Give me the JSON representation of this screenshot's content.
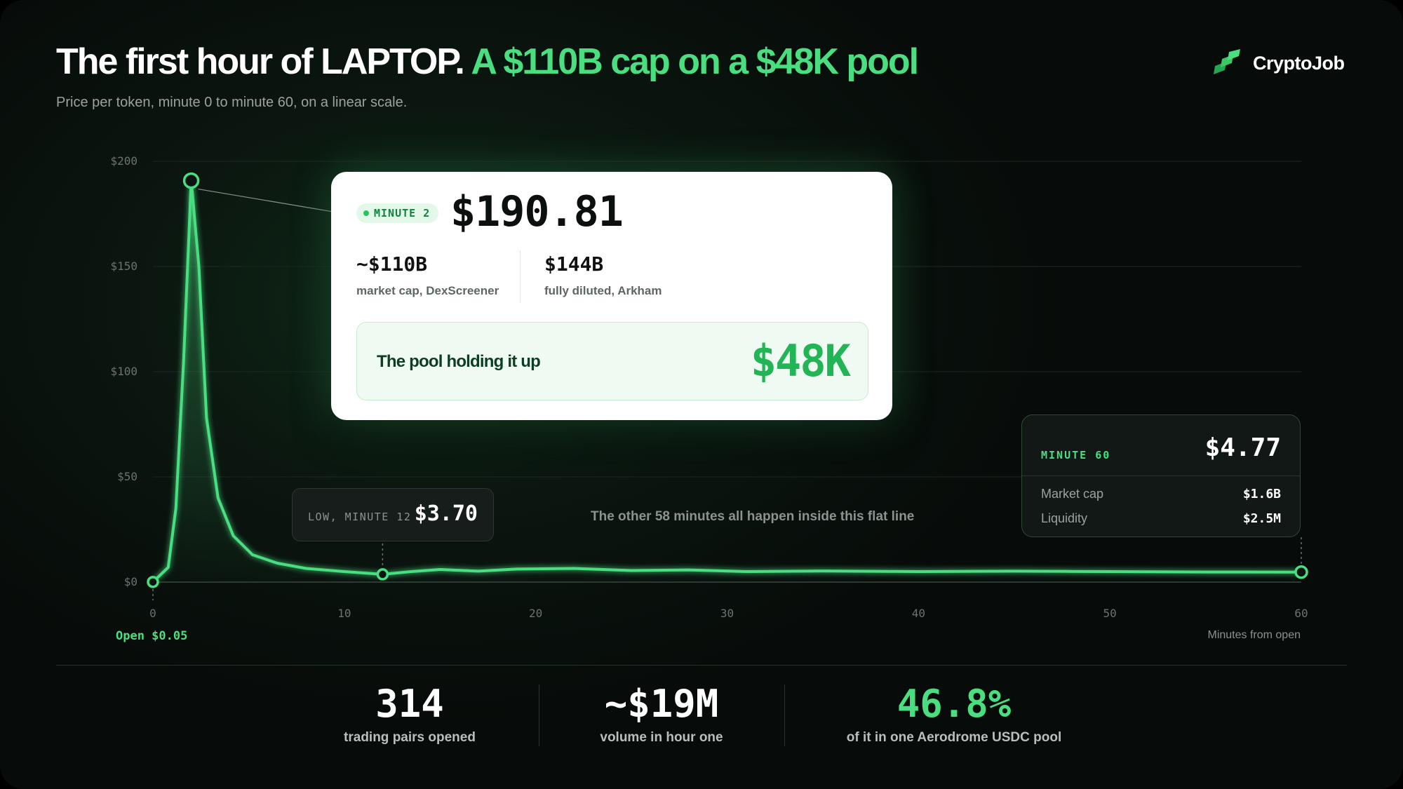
{
  "header": {
    "title_main": "The first hour of LAPTOP.",
    "title_accent": "A $110B cap on a $48K pool",
    "subtitle": "Price per token, minute 0 to minute 60, on a linear scale.",
    "brand": "CryptoJob"
  },
  "colors": {
    "accent": "#4ade80",
    "background": "#0b1410",
    "card": "#ffffff",
    "pool_green": "#22b455"
  },
  "chart_data": {
    "type": "area",
    "xlabel": "Minutes from open",
    "ylabel": "",
    "xlim": [
      0,
      60
    ],
    "ylim": [
      0,
      200
    ],
    "xticks": [
      0,
      10,
      20,
      30,
      40,
      50,
      60
    ],
    "yticks": [
      0,
      50,
      100,
      150,
      200
    ],
    "ytick_labels": [
      "$0",
      "$50",
      "$100",
      "$150",
      "$200"
    ],
    "grid": true,
    "x": [
      0,
      0.8,
      1.2,
      1.6,
      2,
      2.4,
      2.8,
      3.4,
      4.2,
      5.2,
      6.5,
      8,
      10,
      12,
      13.5,
      15,
      17,
      19,
      22,
      25,
      28,
      31,
      35,
      40,
      45,
      50,
      55,
      60
    ],
    "y": [
      0.05,
      7,
      35,
      105,
      190.81,
      150,
      78,
      40,
      22,
      13,
      9,
      6.5,
      5,
      3.7,
      5,
      6,
      5.2,
      6.2,
      6.5,
      5.5,
      5.8,
      5,
      5.3,
      5,
      5.2,
      5,
      4.8,
      4.77
    ],
    "annotations": {
      "open": {
        "text": "Open $0.05",
        "x": 0,
        "y": 0.05
      },
      "peak": {
        "x": 2,
        "y": 190.81
      },
      "low": {
        "x": 12,
        "y": 3.7
      },
      "end": {
        "x": 60,
        "y": 4.77
      },
      "flat_note": "The other 58 minutes all happen inside this flat line"
    }
  },
  "peak_card": {
    "badge": "MINUTE 2",
    "price": "$190.81",
    "market_cap": "~$110B",
    "market_cap_label": "market cap, DexScreener",
    "fdv": "$144B",
    "fdv_label": "fully diluted, Arkham",
    "pool_label": "The pool holding it up",
    "pool_value": "$48K"
  },
  "low_card": {
    "label": "LOW, MINUTE 12",
    "price": "$3.70"
  },
  "end_card": {
    "label": "MINUTE 60",
    "price": "$4.77",
    "row1_label": "Market cap",
    "row1_value": "$1.6B",
    "row2_label": "Liquidity",
    "row2_value": "$2.5M"
  },
  "stats": [
    {
      "value": "314",
      "label": "trading pairs opened"
    },
    {
      "value": "~$19M",
      "label": "volume in hour one"
    },
    {
      "value": "46.8%",
      "label": "of it in one Aerodrome USDC pool"
    }
  ]
}
